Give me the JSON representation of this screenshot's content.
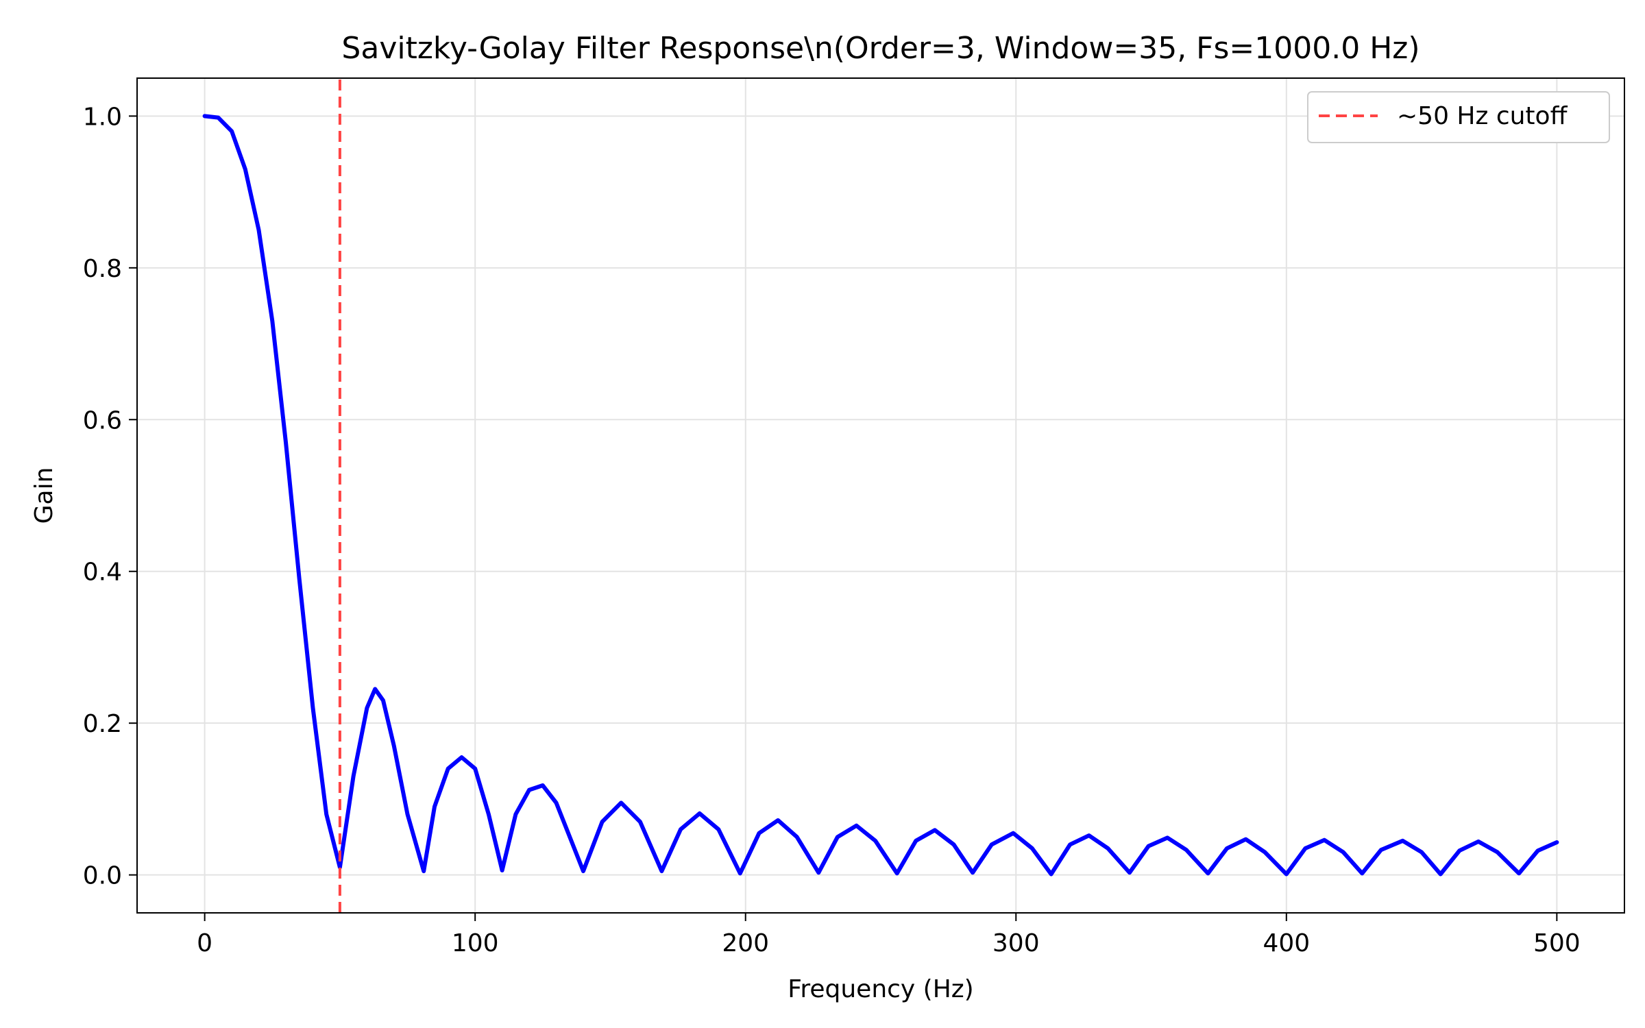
{
  "chart_data": {
    "type": "line",
    "title": "Savitzky-Golay Filter Response\\n(Order=3, Window=35, Fs=1000.0 Hz)",
    "xlabel": "Frequency (Hz)",
    "ylabel": "Gain",
    "xlim": [
      -25,
      525
    ],
    "ylim": [
      -0.05,
      1.05
    ],
    "x_ticks": [
      0,
      100,
      200,
      300,
      400,
      500
    ],
    "x_tick_labels": [
      "0",
      "100",
      "200",
      "300",
      "400",
      "500"
    ],
    "y_ticks": [
      0.0,
      0.2,
      0.4,
      0.6,
      0.8,
      1.0
    ],
    "y_tick_labels": [
      "0.0",
      "0.2",
      "0.4",
      "0.6",
      "0.8",
      "1.0"
    ],
    "grid": true,
    "legend_position": "upper-right",
    "series": [
      {
        "color": "#0000ff",
        "style": "solid",
        "x": [
          0,
          5,
          10,
          15,
          20,
          25,
          30,
          35,
          40,
          45,
          50,
          55,
          60,
          63,
          66,
          70,
          75,
          81,
          85,
          90,
          95,
          100,
          105,
          110,
          115,
          120,
          125,
          130,
          135,
          140,
          147,
          154,
          161,
          169,
          176,
          183,
          190,
          198,
          205,
          212,
          219,
          227,
          234,
          241,
          248,
          256,
          263,
          270,
          277,
          284,
          291,
          299,
          306,
          313,
          320,
          327,
          334,
          342,
          349,
          356,
          363,
          371,
          378,
          385,
          392,
          400,
          407,
          414,
          421,
          428,
          435,
          443,
          450,
          457,
          464,
          471,
          478,
          486,
          493,
          500
        ],
        "y": [
          1.0,
          0.998,
          0.98,
          0.93,
          0.85,
          0.73,
          0.57,
          0.39,
          0.22,
          0.08,
          0.01,
          0.13,
          0.22,
          0.245,
          0.23,
          0.17,
          0.08,
          0.005,
          0.09,
          0.14,
          0.155,
          0.14,
          0.08,
          0.006,
          0.08,
          0.112,
          0.118,
          0.095,
          0.05,
          0.005,
          0.07,
          0.095,
          0.07,
          0.005,
          0.06,
          0.081,
          0.06,
          0.002,
          0.055,
          0.072,
          0.05,
          0.003,
          0.05,
          0.065,
          0.045,
          0.002,
          0.045,
          0.059,
          0.04,
          0.003,
          0.04,
          0.055,
          0.035,
          0.001,
          0.04,
          0.052,
          0.035,
          0.003,
          0.038,
          0.049,
          0.033,
          0.002,
          0.035,
          0.047,
          0.03,
          0.001,
          0.035,
          0.046,
          0.03,
          0.002,
          0.033,
          0.045,
          0.03,
          0.001,
          0.032,
          0.044,
          0.03,
          0.002,
          0.032,
          0.043
        ]
      },
      {
        "name": "~50 Hz cutoff",
        "color": "#ff4444",
        "style": "dashed",
        "x": [
          50,
          50
        ],
        "y": [
          -0.05,
          1.05
        ]
      }
    ]
  }
}
